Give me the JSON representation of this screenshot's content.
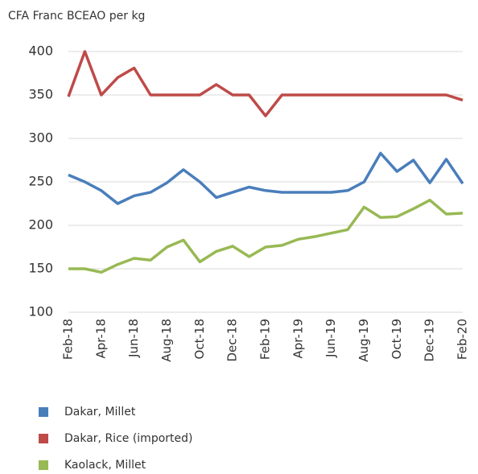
{
  "chart_data": {
    "type": "line",
    "y_axis_label": "CFA Franc BCEAO per kg",
    "categories": [
      "Feb-18",
      null,
      "Apr-18",
      null,
      "Jun-18",
      null,
      "Aug-18",
      null,
      "Oct-18",
      null,
      "Dec-18",
      null,
      "Feb-19",
      null,
      "Apr-19",
      null,
      "Jun-19",
      null,
      "Aug-19",
      null,
      "Oct-19",
      null,
      "Dec-19",
      null,
      "Feb-20"
    ],
    "series": [
      {
        "name": "Dakar, Millet",
        "color": "#4a7ebb",
        "values": [
          258,
          250,
          240,
          225,
          234,
          238,
          249,
          264,
          250,
          232,
          238,
          244,
          240,
          238,
          238,
          238,
          238,
          240,
          250,
          283,
          262,
          275,
          249,
          276,
          248
        ]
      },
      {
        "name": "Dakar, Rice (imported)",
        "color": "#be4b48",
        "values": [
          348,
          400,
          350,
          370,
          381,
          350,
          350,
          350,
          350,
          362,
          350,
          350,
          326,
          350,
          350,
          350,
          350,
          350,
          350,
          350,
          350,
          350,
          350,
          350,
          344
        ]
      },
      {
        "name": "Kaolack, Millet",
        "color": "#98b954",
        "values": [
          150,
          150,
          146,
          155,
          162,
          160,
          175,
          183,
          158,
          170,
          176,
          164,
          175,
          177,
          184,
          187,
          191,
          195,
          221,
          209,
          210,
          219,
          229,
          213,
          214
        ]
      }
    ],
    "ylim": [
      100,
      400
    ],
    "yticks": [
      100,
      150,
      200,
      250,
      300,
      350,
      400
    ],
    "grid": true
  }
}
